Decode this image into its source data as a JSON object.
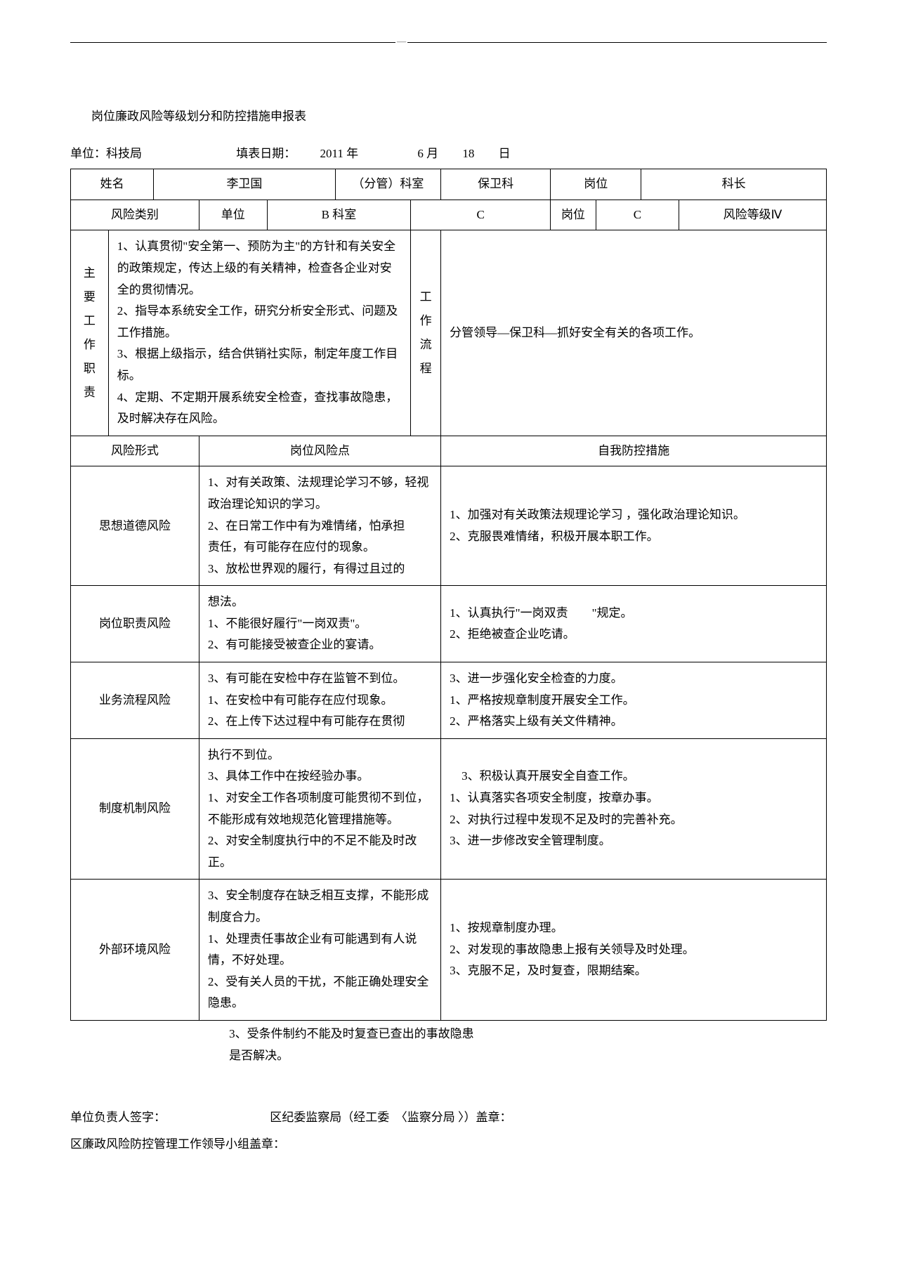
{
  "page": {
    "title": "岗位廉政风险等级划分和防控措施申报表",
    "unit_label": "单位：",
    "unit": "科技局",
    "fill_date_label": "填表日期：",
    "year": "2011 年",
    "month": "6 月",
    "day_num": "18",
    "day_unit": "日"
  },
  "row_name": {
    "name_label": "姓名",
    "name": "李卫国",
    "dept_label": "（分管）科室",
    "dept": "保卫科",
    "pos_label": "岗位",
    "pos": "科长"
  },
  "row_risk": {
    "category_label": "风险类别",
    "unit_label": "单位",
    "b_label": "B 科室",
    "c1": "C",
    "pos_label": "岗位",
    "c2": "C",
    "level_label": "风险等级Ⅳ"
  },
  "duties": {
    "header": "主要工作职责",
    "content": "1、认真贯彻\"安全第一、预防为主\"的方针和有关安全的政策规定，传达上级的有关精神，检查各企业对安全的贯彻情况。\n2、指导本系统安全工作，研究分析安全形式、问题及工作措施。\n3、根据上级指示，结合供销社实际，制定年度工作目标。\n4、定期、不定期开展系统安全检查，查找事故隐患，及时解决存在风险。",
    "flow_header": "工作流程",
    "flow_content": "分管领导—保卫科—抓好安全有关的各项工作。"
  },
  "risk_header": {
    "form_label": "风险形式",
    "point_label": "岗位风险点",
    "ctrl_label": "自我防控措施"
  },
  "risks": [
    {
      "form": "思想道德风险",
      "point": "1、对有关政策、法规理论学习不够，轻视政治理论知识的学习。\n2、在日常工作中有为难情绪，怕承担\n责任，有可能存在应付的现象。\n3、放松世界观的履行，有得过且过的",
      "ctrl": "1、加强对有关政策法规理论学习 ，强化政治理论知识。\n2、克服畏难情绪，积极开展本职工作。"
    },
    {
      "form": "岗位职责风险",
      "point": "想法。\n1、不能很好履行\"一岗双责\"。\n2、有可能接受被查企业的宴请。",
      "ctrl": "1、认真执行\"一岗双责　　\"规定。\n2、拒绝被查企业吃请。"
    },
    {
      "form": "业务流程风险",
      "point": "3、有可能在安检中存在监管不到位。\n1、在安检中有可能存在应付现象。\n2、在上传下达过程中有可能存在贯彻",
      "ctrl": "3、进一步强化安全检查的力度。\n1、严格按规章制度开展安全工作。\n2、严格落实上级有关文件精神。"
    },
    {
      "form": "制度机制风险",
      "point": "执行不到位。\n3、具体工作中在按经验办事。\n1、对安全工作各项制度可能贯彻不到位，不能形成有效地规范化管理措施等。\n2、对安全制度执行中的不足不能及时改正。",
      "ctrl": "　3、积极认真开展安全自查工作。\n1、认真落实各项安全制度，按章办事。\n2、对执行过程中发现不足及时的完善补充。\n3、进一步修改安全管理制度。"
    },
    {
      "form": "外部环境风险",
      "point": "3、安全制度存在缺乏相互支撑，不能形成制度合力。\n1、处理责任事故企业有可能遇到有人说情，不好处理。\n2、受有关人员的干扰，不能正确处理安全隐患。",
      "ctrl": "1、按规章制度办理。\n2、对发现的事故隐患上报有关领导及时处理。\n3、克服不足，及时复查，限期结案。"
    }
  ],
  "overflow": "3、受条件制约不能及时复查已查出的事故隐患是否解决。",
  "sig": {
    "person": "单位负责人签字：",
    "ji": "区纪委监察局（经工委　〈监察分局 〉）盖章：",
    "group": "区廉政风险防控管理工作领导小组盖章："
  }
}
